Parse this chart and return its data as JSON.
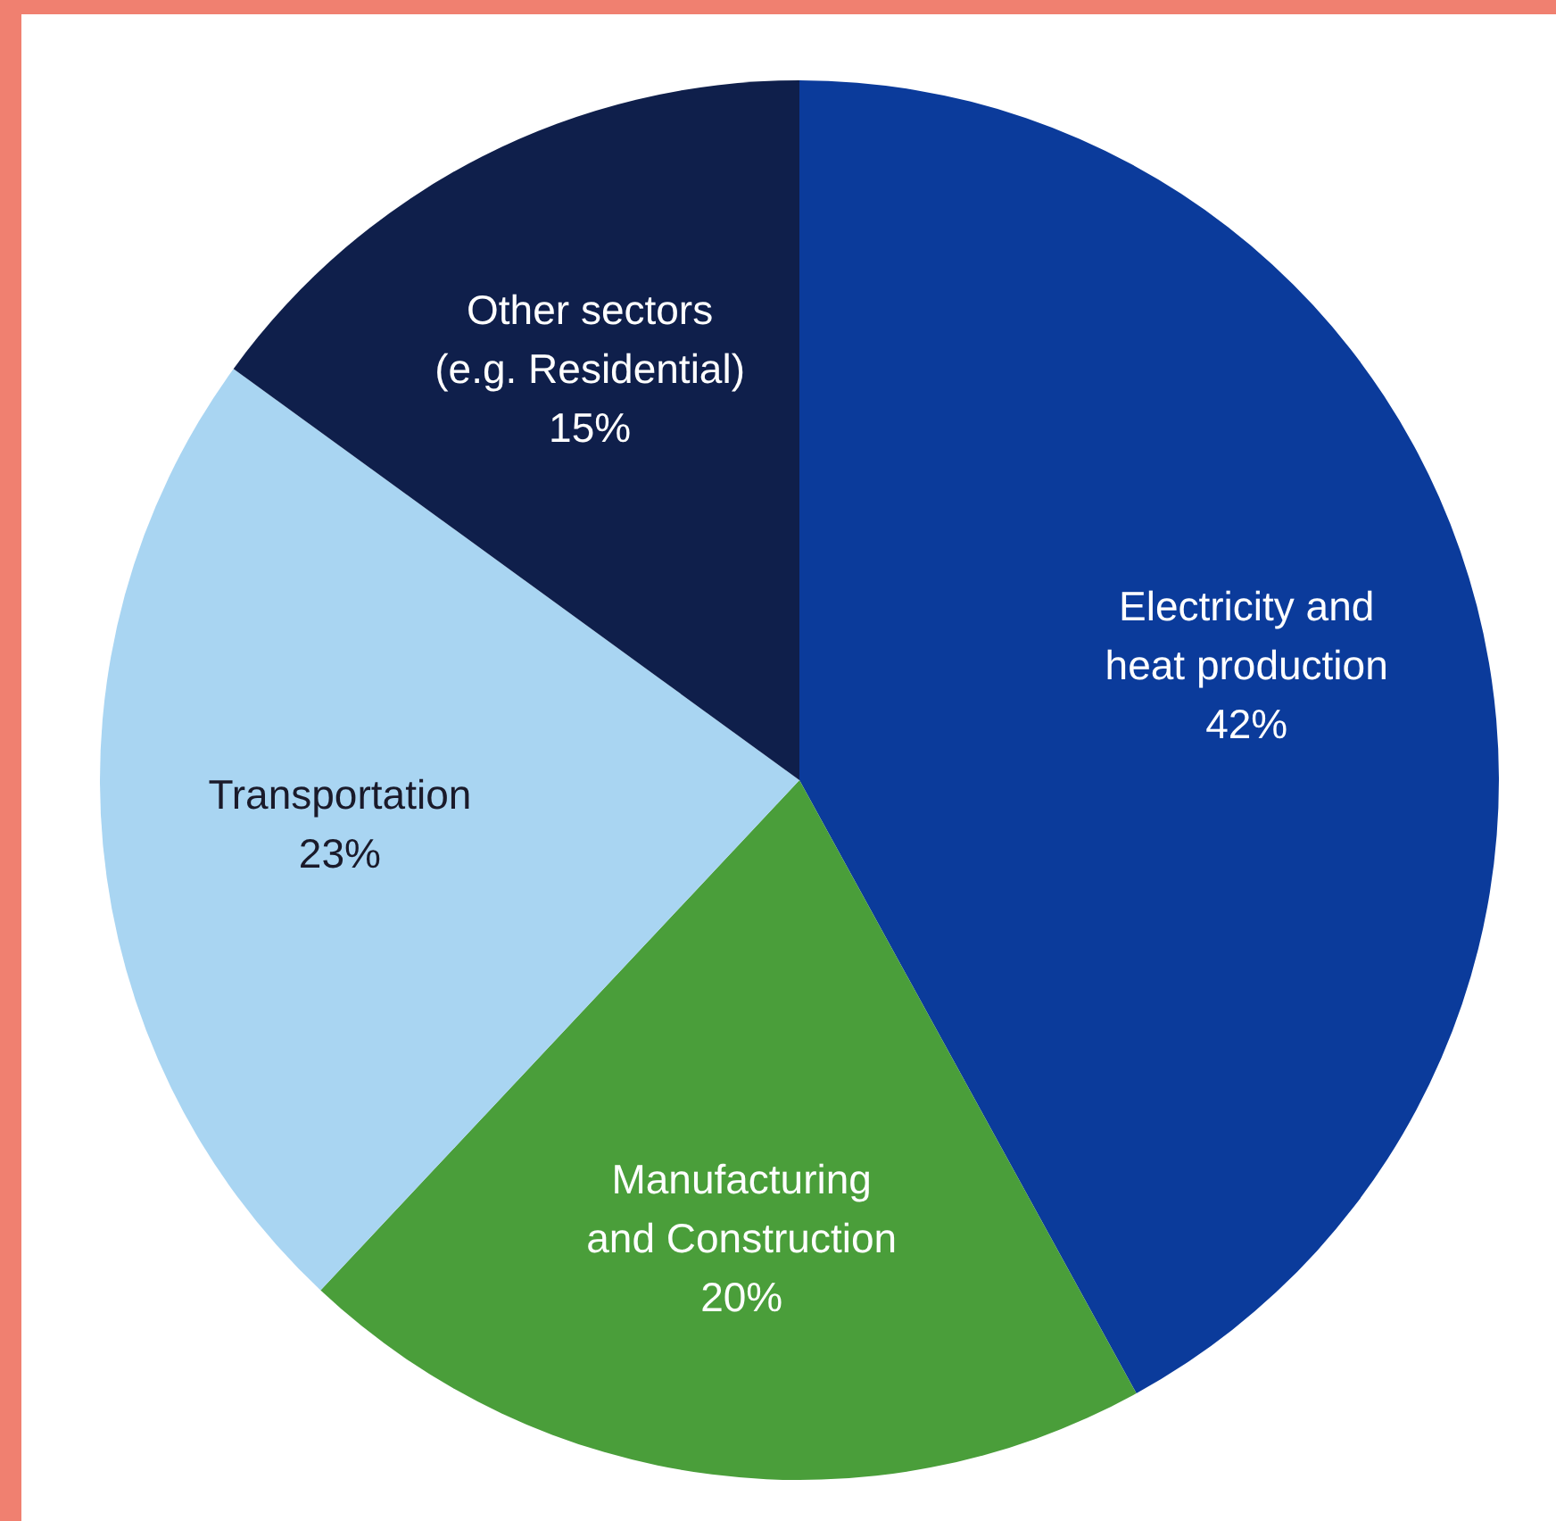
{
  "chart_data": {
    "type": "pie",
    "categories": [
      "Electricity and\nheat production",
      "Manufacturing\nand Construction",
      "Transportation",
      "Other sectors\n(e.g. Residential)"
    ],
    "values": [
      42,
      20,
      23,
      15
    ],
    "value_labels": [
      "42%",
      "20%",
      "23%",
      "15%"
    ],
    "colors": [
      "#0b3b9b",
      "#4a9e3a",
      "#a9d5f2",
      "#0f1f4b"
    ],
    "legend": false
  }
}
